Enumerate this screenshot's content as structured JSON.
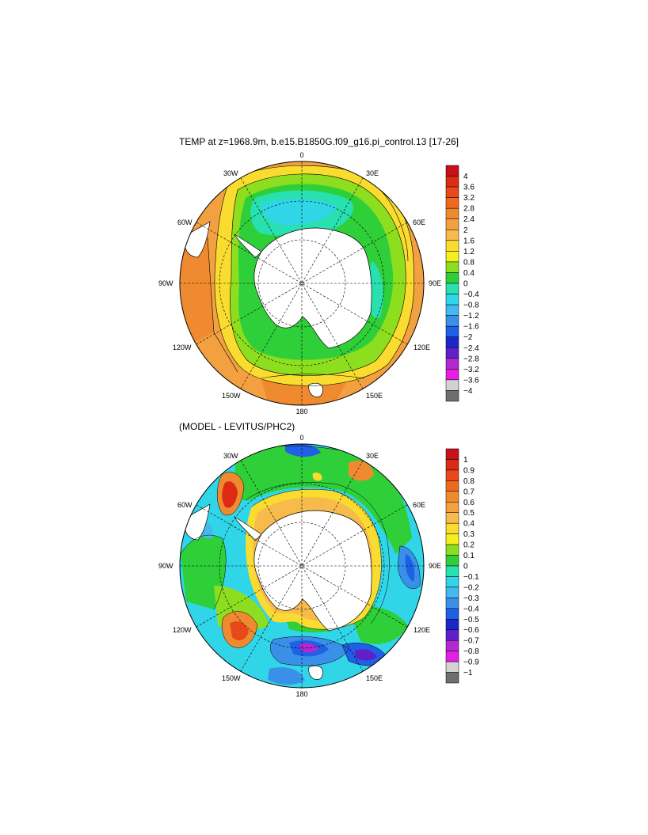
{
  "panels": [
    {
      "title": "TEMP at z=1968.9m, b.e15.B1850G.f09_g16.pi_control.13 [17-26]",
      "longitude_labels": {
        "top": "0",
        "bottom": "180",
        "left": "90W",
        "right": "90E",
        "upper_left_30": "30W",
        "upper_right_30": "30E",
        "upper_left_60": "60W",
        "upper_right_60": "60E",
        "lower_left_120": "120W",
        "lower_right_120": "120E",
        "lower_left_150": "150W",
        "lower_right_150": "150E"
      },
      "colorbar": {
        "labels": [
          "4",
          "3.6",
          "3.2",
          "2.8",
          "2.4",
          "2",
          "1.6",
          "1.2",
          "0.8",
          "0.4",
          "0",
          "−0.4",
          "−0.8",
          "−1.2",
          "−1.6",
          "−2",
          "−2.4",
          "−2.8",
          "−3.2",
          "−3.6",
          "−4"
        ],
        "colors": [
          "#c8101a",
          "#dc2a14",
          "#e8481a",
          "#ee6a1e",
          "#f08a30",
          "#f3a140",
          "#f6bb4a",
          "#fadc30",
          "#f4f01e",
          "#8ede20",
          "#2fcf3a",
          "#28e0b0",
          "#30d6e8",
          "#46b8f0",
          "#3a90e8",
          "#1e60e6",
          "#1b28c8",
          "#6020c8",
          "#b02ad0",
          "#e41ee4",
          "#d2d2d2",
          "#6e6e6e"
        ]
      }
    },
    {
      "title": "(MODEL - LEVITUS/PHC2)",
      "longitude_labels": {
        "top": "0",
        "bottom": "180",
        "left": "90W",
        "right": "90E",
        "upper_left_30": "30W",
        "upper_right_30": "30E",
        "upper_left_60": "60W",
        "upper_right_60": "60E",
        "lower_left_120": "120W",
        "lower_right_120": "120E",
        "lower_left_150": "150W",
        "lower_right_150": "150E"
      },
      "colorbar": {
        "labels": [
          "1",
          "0.9",
          "0.8",
          "0.7",
          "0.6",
          "0.5",
          "0.4",
          "0.3",
          "0.2",
          "0.1",
          "0",
          "−0.1",
          "−0.2",
          "−0.3",
          "−0.4",
          "−0.5",
          "−0.6",
          "−0.7",
          "−0.8",
          "−0.9",
          "−1"
        ],
        "colors": [
          "#c8101a",
          "#dc2a14",
          "#e8481a",
          "#ee6a1e",
          "#f08a30",
          "#f3a140",
          "#f6bb4a",
          "#fadc30",
          "#f4f01e",
          "#8ede20",
          "#2fcf3a",
          "#28e0b0",
          "#30d6e8",
          "#46b8f0",
          "#3a90e8",
          "#1e60e6",
          "#1b28c8",
          "#6020c8",
          "#b02ad0",
          "#e41ee4",
          "#d2d2d2",
          "#6e6e6e"
        ]
      }
    }
  ]
}
